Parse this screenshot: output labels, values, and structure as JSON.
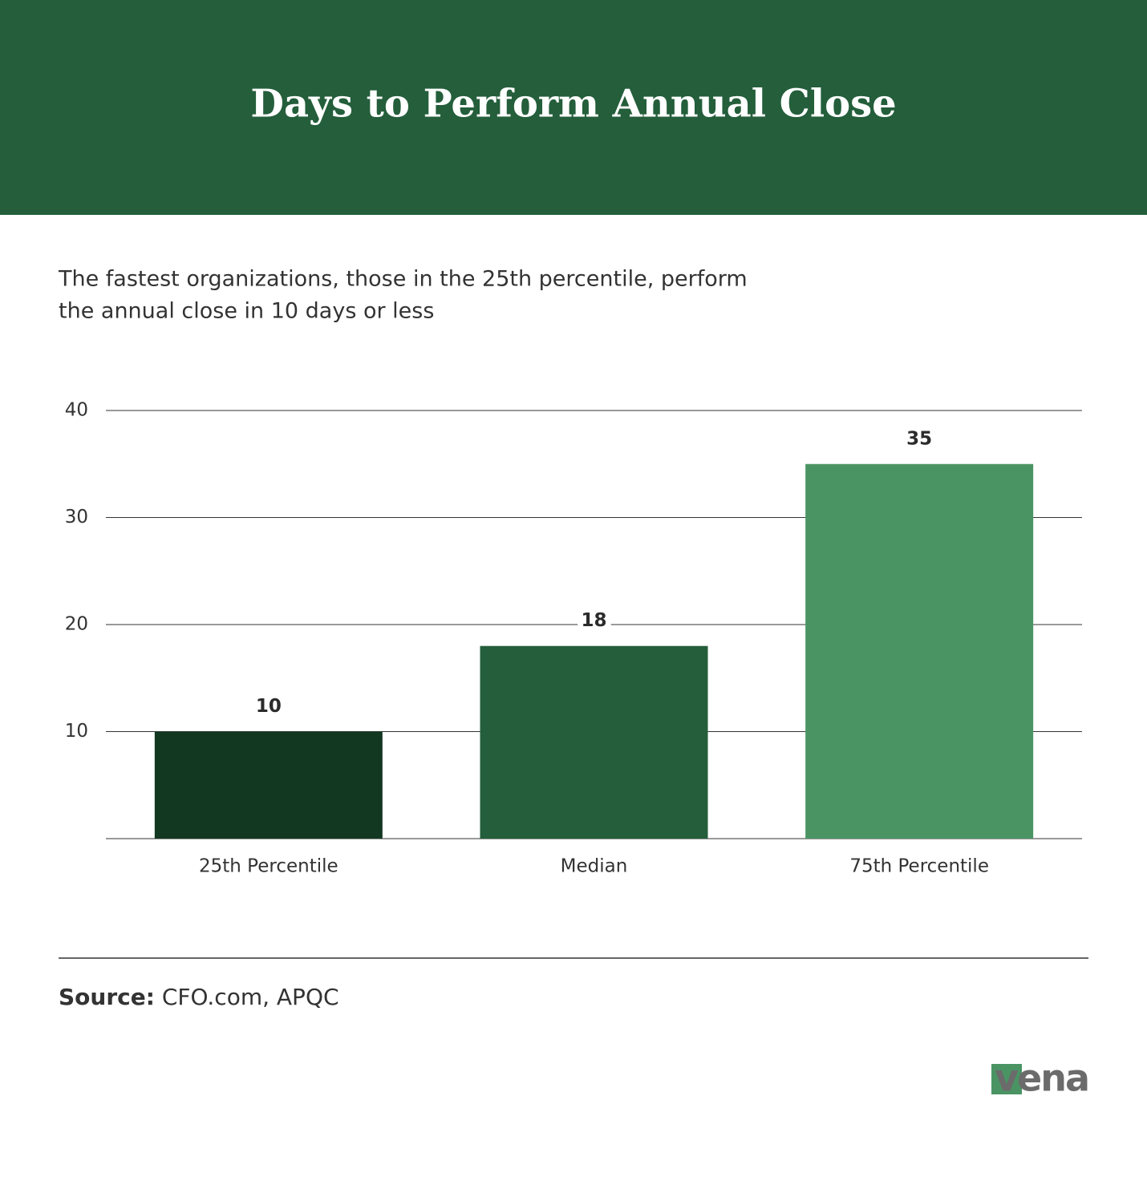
{
  "chart_data": {
    "type": "bar",
    "title": "Days to Perform Annual Close",
    "subtitle": [
      "The fastest organizations, those in the 25th percentile, perform",
      "the annual close in 10 days or less"
    ],
    "categories": [
      "25th Percentile",
      "Median",
      "75th Percentile"
    ],
    "values": [
      10,
      18,
      35
    ],
    "colors": [
      "#133821",
      "#245e3b",
      "#4a9464"
    ],
    "ylim": [
      0,
      40
    ],
    "yticks": [
      10,
      20,
      30,
      40
    ],
    "grid": true,
    "source_label": "Source:",
    "source": "CFO.com, APQC",
    "logo": "vena"
  }
}
